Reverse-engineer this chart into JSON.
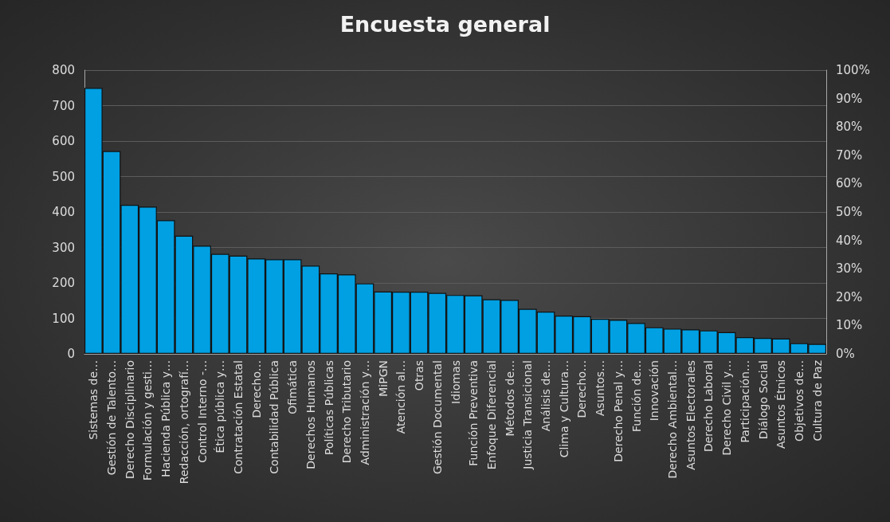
{
  "chart_data": {
    "type": "bar",
    "title": "Encuesta general",
    "categories": [
      "Sistemas de…",
      "Gestión de Talento…",
      "Derecho Disciplinario",
      "Formulación y gesti…",
      "Hacienda Pública y…",
      "Redacción, ortografí…",
      "Control Interno -…",
      "Ética pública y…",
      "Contratación Estatal",
      "Derecho…",
      "Contabilidad Pública",
      "Ofimática",
      "Derechos Humanos",
      "Políticas Públicas",
      "Derecho Tributario",
      "Administración y…",
      "MiPGN",
      "Atención al…",
      "Otras",
      "Gestión Documental",
      "Idiomas",
      "Función Preventiva",
      "Enfoque Diferencial",
      "Métodos de…",
      "Justicia Transicional",
      "Análisis de…",
      "Clima y Cultura…",
      "Derecho…",
      "Asuntos…",
      "Derecho Penal y…",
      "Función de…",
      "Innovación",
      "Derecho Ambiental…",
      "Asuntos Electorales",
      "Derecho Laboral",
      "Derecho Civil y…",
      "Participación…",
      "Diálogo Social",
      "Asuntos Étnicos",
      "Objetivos de…",
      "Cultura de Paz"
    ],
    "series": [
      {
        "color": "#00a0e3",
        "values": [
          750,
          572,
          420,
          415,
          377,
          333,
          305,
          282,
          277,
          269,
          267,
          267,
          249,
          227,
          224,
          199,
          176,
          175,
          175,
          172,
          166,
          165,
          154,
          152,
          127,
          119,
          108,
          106,
          99,
          96,
          87,
          75,
          71,
          69,
          66,
          61,
          47,
          45,
          43,
          30,
          28
        ]
      }
    ],
    "ylim": [
      0,
      800
    ],
    "yticks": [
      0,
      100,
      200,
      300,
      400,
      500,
      600,
      700,
      800
    ],
    "y2lim": [
      0,
      100
    ],
    "y2ticks": [
      {
        "value": 0,
        "label": "0%"
      },
      {
        "value": 10,
        "label": "10%"
      },
      {
        "value": 20,
        "label": "20%"
      },
      {
        "value": 30,
        "label": "30%"
      },
      {
        "value": 40,
        "label": "40%"
      },
      {
        "value": 50,
        "label": "50%"
      },
      {
        "value": 60,
        "label": "60%"
      },
      {
        "value": 70,
        "label": "70%"
      },
      {
        "value": 80,
        "label": "80%"
      },
      {
        "value": 90,
        "label": "90%"
      },
      {
        "value": 100,
        "label": "100%"
      }
    ],
    "grid": "y"
  }
}
